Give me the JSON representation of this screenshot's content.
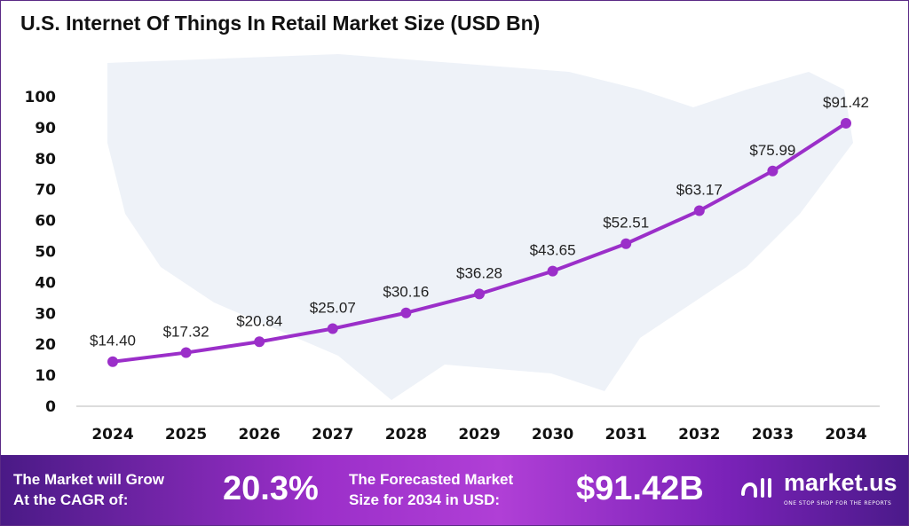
{
  "chart_data": {
    "type": "line",
    "title": "U.S. Internet Of Things In Retail Market Size (USD Bn)",
    "categories": [
      "2024",
      "2025",
      "2026",
      "2027",
      "2028",
      "2029",
      "2030",
      "2031",
      "2032",
      "2033",
      "2034"
    ],
    "values": [
      14.4,
      17.32,
      20.84,
      25.07,
      30.16,
      36.28,
      43.65,
      52.51,
      63.17,
      75.99,
      91.42
    ],
    "data_labels": [
      "$14.40",
      "$17.32",
      "$20.84",
      "$25.07",
      "$30.16",
      "$36.28",
      "$43.65",
      "$52.51",
      "$63.17",
      "$75.99",
      "$91.42"
    ],
    "yticks": [
      0,
      10,
      20,
      30,
      40,
      50,
      60,
      70,
      80,
      90,
      100
    ],
    "ylim": [
      0,
      100
    ],
    "grid": false,
    "line_color": "#9b2fc9"
  },
  "footer": {
    "cagr_label_1": "The Market will Grow",
    "cagr_label_2": "At the CAGR of:",
    "cagr_value": "20.3%",
    "forecast_label_1": "The Forecasted Market",
    "forecast_label_2": "Size for 2034 in USD:",
    "forecast_value": "$91.42B",
    "logo_name": "market.us",
    "logo_tagline": "ONE STOP SHOP FOR THE REPORTS"
  }
}
